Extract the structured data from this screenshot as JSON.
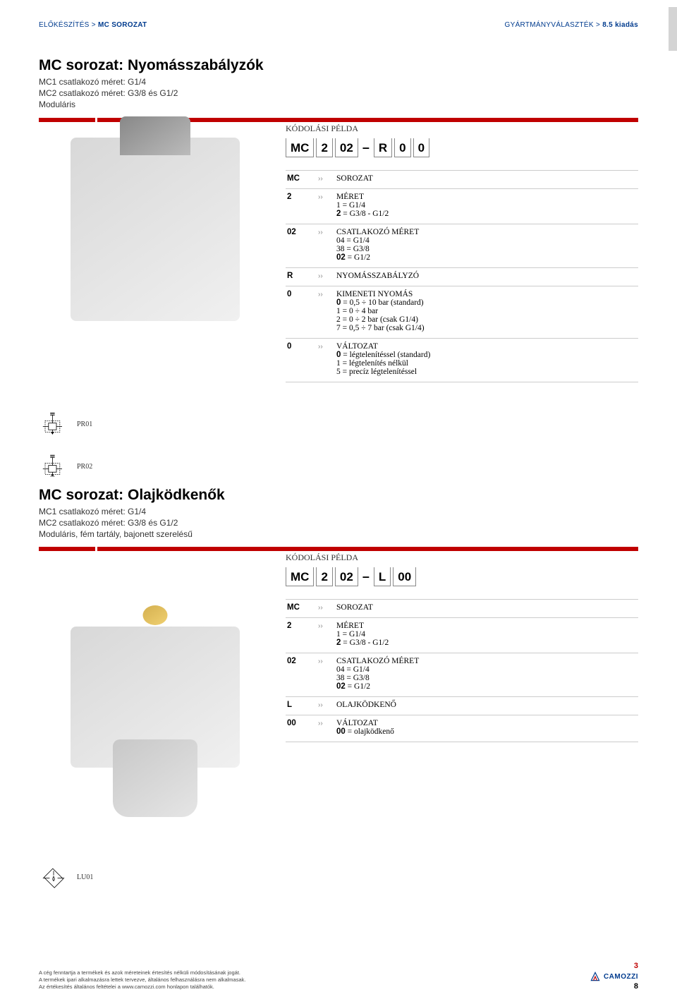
{
  "header": {
    "left_prefix": "ELŐKÉSZÍTÉS >",
    "left_strong": "MC SOROZAT",
    "right_prefix": "GYÁRTMÁNYVÁLASZTÉK >",
    "right_strong": "8.5 kiadás"
  },
  "chapter_badge": "3",
  "section1": {
    "title": "MC sorozat: Nyomásszabályzók",
    "subtitle": "MC1 csatlakozó méret: G1/4\nMC2 csatlakozó méret: G3/8 és G1/2\nModuláris",
    "coding_label": "KÓDOLÁSI PÉLDA",
    "code_parts": [
      "MC",
      "2",
      "02",
      "–",
      "R",
      "0",
      "0"
    ],
    "rows": [
      {
        "key": "MC",
        "title": "SOROZAT",
        "lines": []
      },
      {
        "key": "2",
        "title": "MÉRET",
        "lines": [
          "1 = G1/4",
          "<b>2</b> = G3/8 - G1/2"
        ]
      },
      {
        "key": "02",
        "title": "CSATLAKOZÓ MÉRET",
        "lines": [
          "04 = G1/4",
          "38 = G3/8",
          "<b>02</b> = G1/2"
        ]
      },
      {
        "key": "R",
        "title": "NYOMÁSSZABÁLYZÓ",
        "lines": []
      },
      {
        "key": "0",
        "title": "KIMENETI NYOMÁS",
        "lines": [
          "<b>0</b> = 0,5 ÷ 10 bar (standard)",
          "1 = 0 ÷ 4 bar",
          "2 = 0 ÷ 2 bar (csak G1/4)",
          "7 = 0,5 ÷ 7 bar (csak G1/4)"
        ]
      },
      {
        "key": "0",
        "title": "VÁLTOZAT",
        "lines": [
          "<b>0</b> = légtelenítéssel (standard)",
          "1 = légtelenítés nélkül",
          "5 = precíz légtelenítéssel"
        ]
      }
    ]
  },
  "symbols": [
    {
      "label": "PR01"
    },
    {
      "label": "PR02"
    }
  ],
  "section2": {
    "title": "MC sorozat: Olajködkenők",
    "subtitle": "MC1 csatlakozó méret: G1/4\nMC2 csatlakozó méret: G3/8 és G1/2\nModuláris, fém tartály, bajonett szerelésű",
    "coding_label": "KÓDOLÁSI PÉLDA",
    "code_parts": [
      "MC",
      "2",
      "02",
      "–",
      "L",
      "00"
    ],
    "rows": [
      {
        "key": "MC",
        "title": "SOROZAT",
        "lines": []
      },
      {
        "key": "2",
        "title": "MÉRET",
        "lines": [
          "1 = G1/4",
          "<b>2</b> = G3/8 - G1/2"
        ]
      },
      {
        "key": "02",
        "title": "CSATLAKOZÓ MÉRET",
        "lines": [
          "04 = G1/4",
          "38 = G3/8",
          "<b>02</b> = G1/2"
        ]
      },
      {
        "key": "L",
        "title": "OLAJKÖDKENŐ",
        "lines": []
      },
      {
        "key": "00",
        "title": "VÁLTOZAT",
        "lines": [
          "<b>00</b> = olajködkenő"
        ]
      }
    ]
  },
  "symbol3": {
    "label": "LU01"
  },
  "footer": {
    "line1": "A cég fenntartja a termékek és azok méreteinek értesítés nélküli módosításának jogát.",
    "line2": "A termékek ipari alkalmazásra lettek tervezve, általános felhasználásra nem alkalmasak.",
    "line3": "Az értékesítés általános feltételei a www.camozzi.com honlapon találhatók.",
    "page_red": "3",
    "page_black": "8",
    "brand": "CAMOZZI"
  },
  "colors": {
    "red": "#c00000",
    "blue": "#003b8e",
    "gray_tab": "#d4d4d4",
    "border": "#cccccc"
  }
}
